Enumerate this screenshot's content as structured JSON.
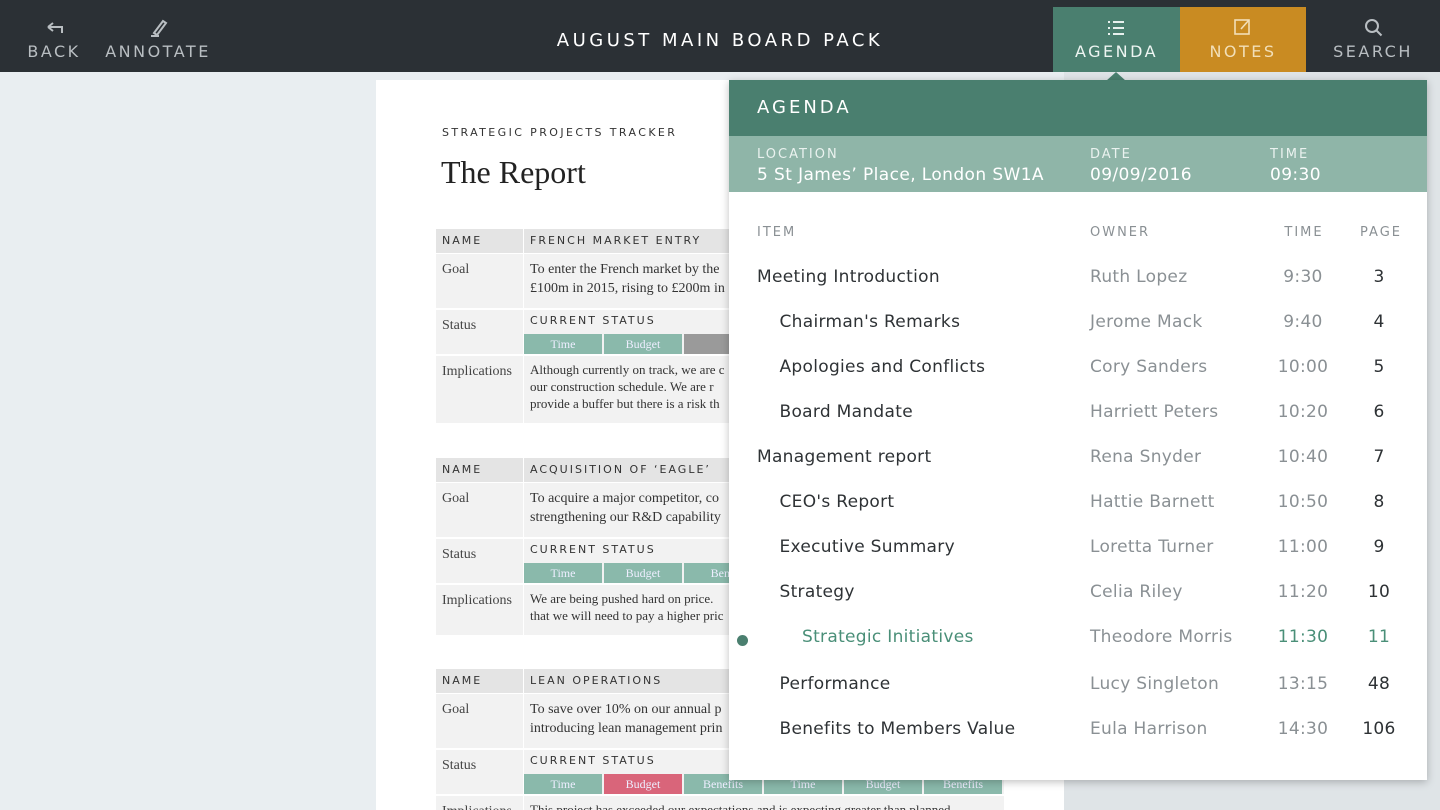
{
  "toolbar": {
    "back": "BACK",
    "annotate": "ANNOTATE",
    "title": "AUGUST MAIN BOARD PACK",
    "tabs": [
      {
        "label": "AGENDA",
        "color": "#4a7f6f"
      },
      {
        "label": "NOTES",
        "color": "#c98b22"
      },
      {
        "label": "SEARCH"
      }
    ]
  },
  "document": {
    "kicker": "STRATEGIC PROJECTS TRACKER",
    "title": "The Report",
    "projects": [
      {
        "name_label": "NAME",
        "name": "FRENCH MARKET ENTRY",
        "goal_label": "Goal",
        "goal": [
          "To enter the French market by the",
          "£100m in 2015, rising to £200m in"
        ],
        "status_label": "Status",
        "status_title": "CURRENT STATUS",
        "chips": [
          {
            "label": "Time",
            "color": "#8ab9ab"
          },
          {
            "label": "Budget",
            "color": "#8ab9ab"
          },
          {
            "color": "#9a9a9a"
          }
        ],
        "implications_label": "Implications",
        "implications": [
          "Although currently on track, we are c",
          "our construction schedule.  We are r",
          "provide a buffer but there is a risk th"
        ]
      },
      {
        "name_label": "NAME",
        "name": "ACQUISITION OF ‘EAGLE’",
        "goal_label": "Goal",
        "goal": [
          "To acquire a major competitor, co",
          "strengthening our R&D capability"
        ],
        "status_label": "Status",
        "status_title": "CURRENT STATUS",
        "chips": [
          {
            "label": "Time",
            "color": "#8ab9ab"
          },
          {
            "label": "Budget",
            "color": "#8ab9ab"
          },
          {
            "label": "Bene",
            "color": "#8ab9ab"
          }
        ],
        "implications_label": "Implications",
        "implications": [
          "We are being pushed hard on price.",
          "that we will need to pay a higher pric"
        ]
      },
      {
        "name_label": "NAME",
        "name": "LEAN OPERATIONS",
        "goal_label": "Goal",
        "goal": [
          "To save over 10% on our annual p",
          "introducing lean management prin"
        ],
        "status_label": "Status",
        "status_title": "CURRENT STATUS",
        "chips": [
          {
            "label": "Time",
            "color": "#8ab9ab"
          },
          {
            "label": "Budget",
            "color": "#d9657a"
          },
          {
            "label": "Benefits",
            "color": "#8ab9ab"
          },
          {
            "label": "Time",
            "color": "#8ab9ab"
          },
          {
            "label": "Budget",
            "color": "#8ab9ab"
          },
          {
            "label": "Benefits",
            "color": "#8ab9ab"
          }
        ],
        "implications_label": "Implications",
        "implications": [
          "This project has exceeded our expectations and is expecting greater than planned"
        ]
      }
    ]
  },
  "agenda": {
    "title": "AGENDA",
    "info": [
      {
        "label": "LOCATION",
        "value": "5 St James’ Place, London SW1A"
      },
      {
        "label": "DATE",
        "value": "09/09/2016"
      },
      {
        "label": "TIME",
        "value": "09:30"
      }
    ],
    "columns": [
      "ITEM",
      "OWNER",
      "TIME",
      "PAGE"
    ],
    "items": [
      {
        "item": "Meeting Introduction",
        "owner": "Ruth Lopez",
        "time": "9:30",
        "page": 3,
        "level": 0
      },
      {
        "item": "Chairman's Remarks",
        "owner": "Jerome Mack",
        "time": "9:40",
        "page": 4,
        "level": 1
      },
      {
        "item": "Apologies and Conflicts",
        "owner": "Cory Sanders",
        "time": "10:00",
        "page": 5,
        "level": 1
      },
      {
        "item": "Board Mandate",
        "owner": "Harriett Peters",
        "time": "10:20",
        "page": 6,
        "level": 1
      },
      {
        "item": "Management report",
        "owner": "Rena Snyder",
        "time": "10:40",
        "page": 7,
        "level": 0
      },
      {
        "item": "CEO's Report",
        "owner": "Hattie Barnett",
        "time": "10:50",
        "page": 8,
        "level": 1
      },
      {
        "item": "Executive Summary",
        "owner": "Loretta Turner",
        "time": "11:00",
        "page": 9,
        "level": 1
      },
      {
        "item": "Strategy",
        "owner": "Celia Riley",
        "time": "11:20",
        "page": 10,
        "level": 1
      },
      {
        "item": "Strategic Initiatives",
        "owner": "Theodore Morris",
        "time": "11:30",
        "page": 11,
        "level": 2,
        "active": true
      },
      {
        "item": "Performance",
        "owner": "Lucy Singleton",
        "time": "13:15",
        "page": 48,
        "level": 1
      },
      {
        "item": "Benefits to Members Value",
        "owner": "Eula Harrison",
        "time": "14:30",
        "page": 106,
        "level": 1
      }
    ]
  }
}
